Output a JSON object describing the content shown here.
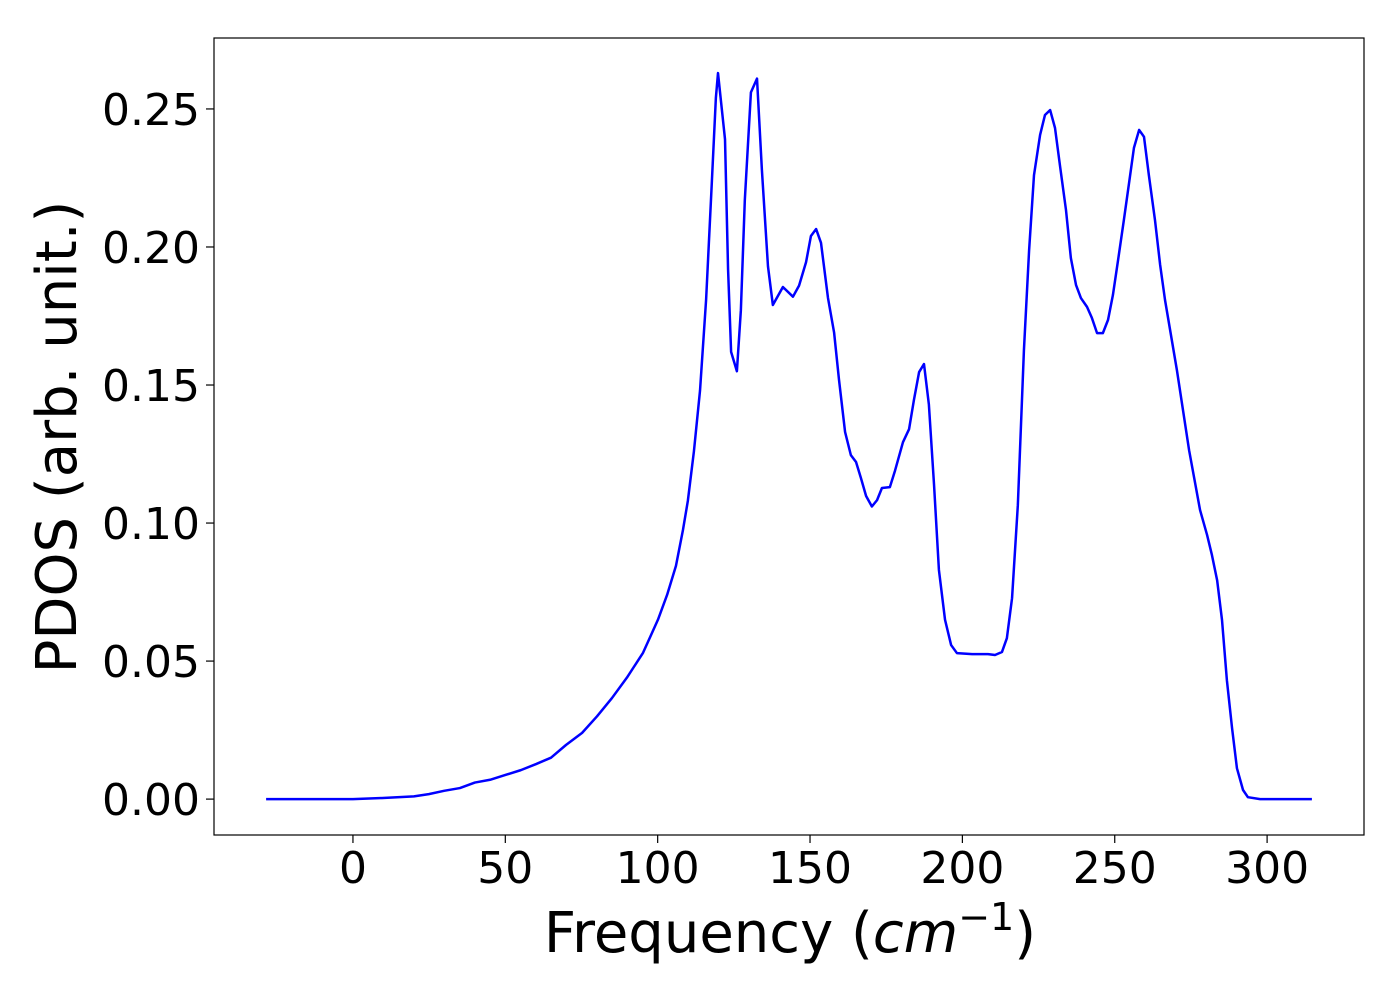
{
  "chart_data": {
    "type": "line",
    "xlabel_parts": [
      "Frequency (",
      "cm",
      "−1",
      ")"
    ],
    "ylabel": "PDOS (arb. unit.)",
    "x": [
      -28.5,
      0,
      9.8,
      20.0,
      24.9,
      29.9,
      35.1,
      40.0,
      45.0,
      49.9,
      55.1,
      60.1,
      65.0,
      69.9,
      75.2,
      80.1,
      85.0,
      89.9,
      95.2,
      100.1,
      103.1,
      106.0,
      108.3,
      109.9,
      111.9,
      113.9,
      115.9,
      117.8,
      119.1,
      119.8,
      122.1,
      123.1,
      124.1,
      126.0,
      127.3,
      128.6,
      130.6,
      132.6,
      134.2,
      136.2,
      137.8,
      141.1,
      144.4,
      146.4,
      148.7,
      150.3,
      152.0,
      153.6,
      155.9,
      157.9,
      159.5,
      161.5,
      163.4,
      165.1,
      166.7,
      168.4,
      170.3,
      172.0,
      173.6,
      176.2,
      177.9,
      180.5,
      182.5,
      184.1,
      185.8,
      187.4,
      189.0,
      190.7,
      192.3,
      194.3,
      196.3,
      198.2,
      203.2,
      208.4,
      210.7,
      213.0,
      214.6,
      216.3,
      218.2,
      220.2,
      221.9,
      223.5,
      225.5,
      227.1,
      228.8,
      230.4,
      232.0,
      234.0,
      235.6,
      237.3,
      238.9,
      240.9,
      242.5,
      244.2,
      246.1,
      247.8,
      249.4,
      251.1,
      253.0,
      254.7,
      256.3,
      258.0,
      259.6,
      261.2,
      263.2,
      264.9,
      266.5,
      270.4,
      274.4,
      278.0,
      280.3,
      281.9,
      283.6,
      285.2,
      286.8,
      288.5,
      290.1,
      292.1,
      293.7,
      297.7,
      314.7
    ],
    "series": [
      {
        "color": "#0000ff",
        "values": [
          0,
          0,
          0.0004,
          0.001,
          0.0018,
          0.003,
          0.004,
          0.006,
          0.007,
          0.0087,
          0.0105,
          0.0127,
          0.015,
          0.0196,
          0.024,
          0.03,
          0.0366,
          0.044,
          0.053,
          0.065,
          0.074,
          0.0845,
          0.0975,
          0.108,
          0.126,
          0.148,
          0.181,
          0.224,
          0.254,
          0.263,
          0.239,
          0.192,
          0.162,
          0.155,
          0.177,
          0.217,
          0.256,
          0.261,
          0.228,
          0.193,
          0.179,
          0.1855,
          0.182,
          0.186,
          0.1945,
          0.204,
          0.2065,
          0.2015,
          0.1815,
          0.169,
          0.152,
          0.133,
          0.1246,
          0.1221,
          0.1163,
          0.1098,
          0.106,
          0.1083,
          0.1127,
          0.113,
          0.119,
          0.1293,
          0.134,
          0.1446,
          0.1547,
          0.1576,
          0.143,
          0.1138,
          0.083,
          0.065,
          0.0558,
          0.0529,
          0.0525,
          0.0525,
          0.0522,
          0.0533,
          0.0583,
          0.0728,
          0.1065,
          0.1627,
          0.1989,
          0.226,
          0.2406,
          0.2478,
          0.2496,
          0.2431,
          0.2297,
          0.2134,
          0.196,
          0.1862,
          0.1815,
          0.1783,
          0.1743,
          0.1688,
          0.1688,
          0.1736,
          0.1826,
          0.1953,
          0.2098,
          0.2232,
          0.2359,
          0.2424,
          0.2399,
          0.226,
          0.2098,
          0.1935,
          0.1808,
          0.1554,
          0.1264,
          0.1047,
          0.0957,
          0.0884,
          0.0793,
          0.0649,
          0.0431,
          0.0257,
          0.0112,
          0.0033,
          0.0007,
          0,
          0
        ]
      }
    ],
    "xlim": [
      -45.6,
      331.8
    ],
    "ylim": [
      -0.013,
      0.2757
    ],
    "xticks": [
      0,
      50,
      100,
      150,
      200,
      250,
      300
    ],
    "yticks": [
      {
        "value": 0,
        "label": "0.00"
      },
      {
        "value": 0.05,
        "label": "0.05"
      },
      {
        "value": 0.1,
        "label": "0.10"
      },
      {
        "value": 0.15,
        "label": "0.15"
      },
      {
        "value": 0.2,
        "label": "0.20"
      },
      {
        "value": 0.25,
        "label": "0.25"
      }
    ],
    "grid": false
  }
}
